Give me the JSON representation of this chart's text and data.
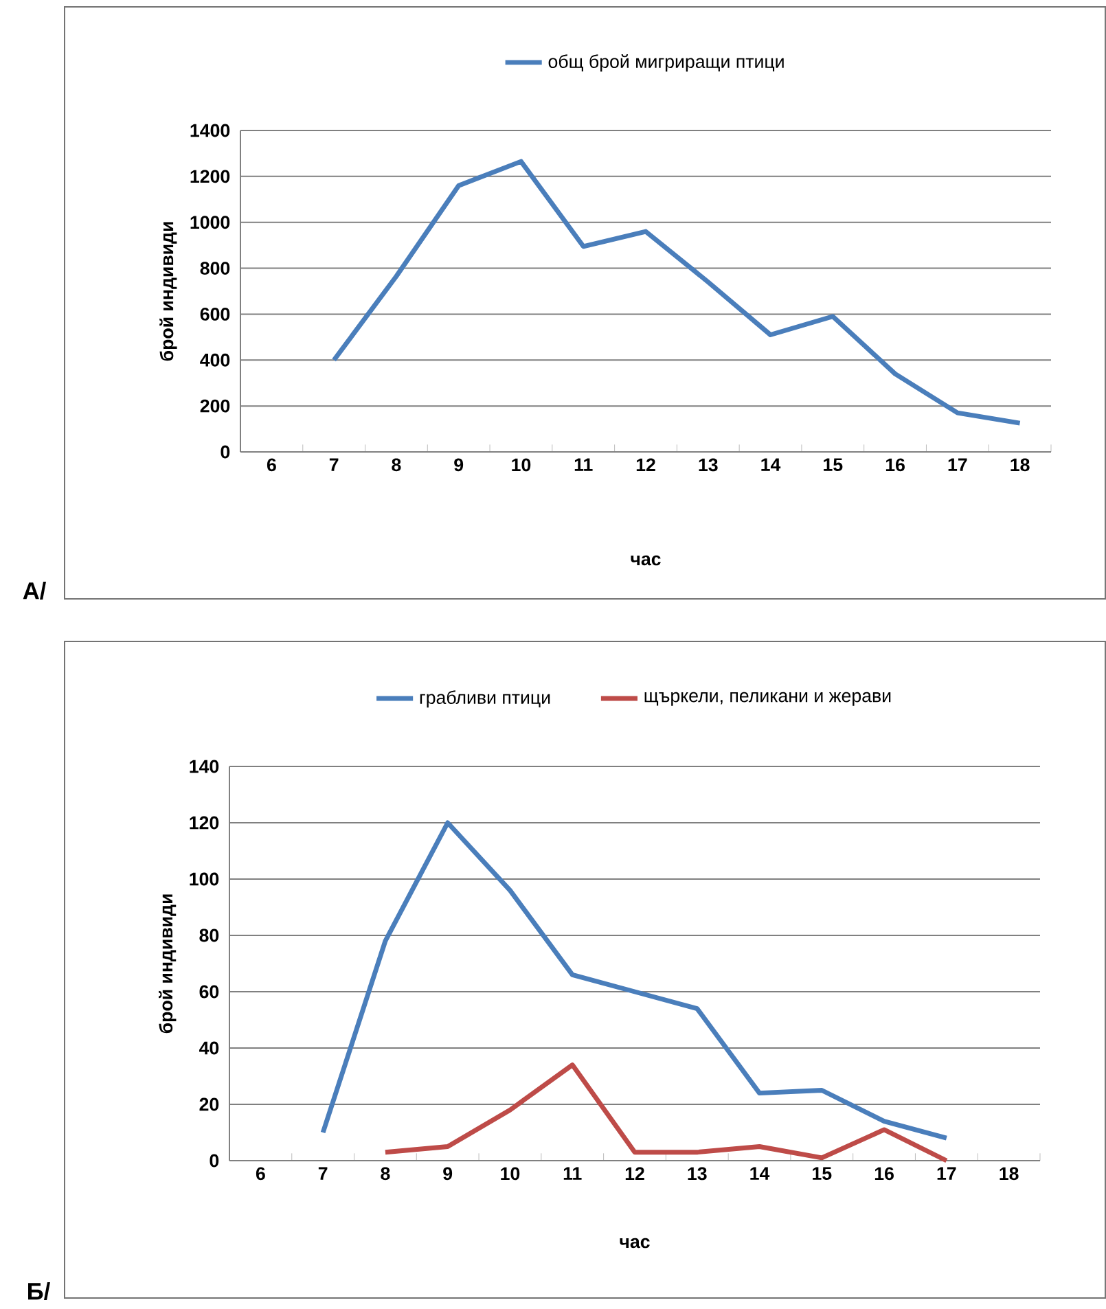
{
  "chart_data": [
    {
      "type": "line",
      "categories": [
        "6",
        "7",
        "8",
        "9",
        "10",
        "11",
        "12",
        "13",
        "14",
        "15",
        "16",
        "17",
        "18"
      ],
      "series": [
        {
          "name": "общ брой мигриращи птици",
          "color": "#4a7ebb",
          "values": [
            null,
            400,
            765,
            1160,
            1265,
            895,
            960,
            740,
            510,
            590,
            340,
            170,
            125
          ]
        }
      ],
      "xlabel": "час",
      "ylabel": "брой индивиди",
      "ylim": [
        0,
        1400
      ],
      "yticks": [
        0,
        200,
        400,
        600,
        800,
        1000,
        1200,
        1400
      ],
      "grid": "y",
      "legend": "top",
      "marker": "none",
      "line_style": "solid",
      "annotations": [
        "А/"
      ]
    },
    {
      "type": "line",
      "categories": [
        "6",
        "7",
        "8",
        "9",
        "10",
        "11",
        "12",
        "13",
        "14",
        "15",
        "16",
        "17",
        "18"
      ],
      "series": [
        {
          "name": "грабливи птици",
          "color": "#4a7ebb",
          "values": [
            null,
            10,
            78,
            120,
            96,
            66,
            60,
            54,
            24,
            25,
            14,
            8,
            null
          ]
        },
        {
          "name": "щъркели, пеликани и жерави",
          "color": "#be4b48",
          "values": [
            null,
            null,
            3,
            5,
            18,
            34,
            3,
            3,
            5,
            1,
            11,
            0,
            null
          ]
        }
      ],
      "xlabel": "час",
      "ylabel": "брой индивиди",
      "ylim": [
        0,
        140
      ],
      "yticks": [
        0,
        20,
        40,
        60,
        80,
        100,
        120,
        140
      ],
      "grid": "y",
      "legend": "top",
      "marker": "none",
      "line_style": "solid",
      "annotations": [
        "Б/"
      ]
    }
  ]
}
